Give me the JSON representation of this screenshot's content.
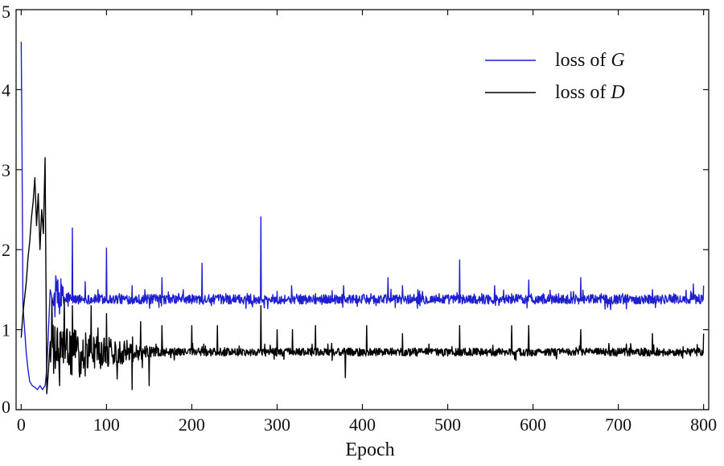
{
  "chart_data": {
    "type": "line",
    "title": "",
    "xlabel": "Epoch",
    "ylabel": "",
    "xlim": [
      -6,
      806
    ],
    "ylim": [
      0,
      5
    ],
    "xticks": [
      0,
      100,
      200,
      300,
      400,
      500,
      600,
      700,
      800
    ],
    "yticks": [
      0,
      1,
      2,
      3,
      4,
      5
    ],
    "grid": false,
    "legend_position": "top-right",
    "series": [
      {
        "name": "loss of G",
        "legend_prefix": "loss of ",
        "legend_var": "G",
        "color": "#1f1fd0",
        "baseline": 1.38,
        "start_points": [
          [
            0,
            4.6
          ],
          [
            1,
            3.2
          ],
          [
            2,
            1.3
          ],
          [
            4,
            1.0
          ],
          [
            6,
            0.7
          ],
          [
            8,
            0.5
          ],
          [
            10,
            0.35
          ],
          [
            13,
            0.3
          ],
          [
            16,
            0.28
          ],
          [
            19,
            0.25
          ],
          [
            22,
            0.3
          ],
          [
            25,
            0.25
          ],
          [
            28,
            0.3
          ],
          [
            30,
            0.5
          ],
          [
            32,
            1.0
          ],
          [
            34,
            1.5
          ],
          [
            36,
            1.4
          ],
          [
            38,
            1.3
          ]
        ],
        "transition_end": 60,
        "transition_start_amplitude": 0.3,
        "noise_amplitude": 0.06,
        "spikes": [
          [
            42,
            1.6
          ],
          [
            60,
            2.27
          ],
          [
            75,
            1.6
          ],
          [
            90,
            1.5
          ],
          [
            100,
            2.02
          ],
          [
            115,
            1.45
          ],
          [
            130,
            1.55
          ],
          [
            145,
            1.5
          ],
          [
            165,
            1.65
          ],
          [
            190,
            1.5
          ],
          [
            212,
            1.83
          ],
          [
            240,
            1.45
          ],
          [
            265,
            1.45
          ],
          [
            281,
            2.41
          ],
          [
            300,
            1.48
          ],
          [
            317,
            1.55
          ],
          [
            345,
            1.45
          ],
          [
            378,
            1.55
          ],
          [
            410,
            1.45
          ],
          [
            430,
            1.65
          ],
          [
            447,
            1.55
          ],
          [
            465,
            1.5
          ],
          [
            490,
            1.45
          ],
          [
            514,
            1.87
          ],
          [
            540,
            1.45
          ],
          [
            555,
            1.55
          ],
          [
            575,
            1.45
          ],
          [
            595,
            1.62
          ],
          [
            612,
            1.45
          ],
          [
            630,
            1.45
          ],
          [
            656,
            1.65
          ],
          [
            680,
            1.45
          ],
          [
            705,
            1.45
          ],
          [
            740,
            1.5
          ],
          [
            765,
            1.45
          ],
          [
            788,
            1.57
          ],
          [
            800,
            1.55
          ]
        ]
      },
      {
        "name": "loss of D",
        "legend_prefix": "loss of ",
        "legend_var": "D",
        "color": "#000000",
        "baseline": 0.72,
        "start_points": [
          [
            0,
            0.9
          ],
          [
            2,
            1.2
          ],
          [
            4,
            1.4
          ],
          [
            6,
            1.6
          ],
          [
            8,
            1.9
          ],
          [
            10,
            2.1
          ],
          [
            12,
            2.4
          ],
          [
            14,
            2.6
          ],
          [
            16,
            2.9
          ],
          [
            18,
            2.3
          ],
          [
            20,
            2.7
          ],
          [
            22,
            2.0
          ],
          [
            24,
            2.5
          ],
          [
            26,
            2.2
          ],
          [
            28,
            3.15
          ],
          [
            30,
            0.2
          ],
          [
            32,
            0.5
          ],
          [
            34,
            0.85
          ]
        ],
        "transition_end": 160,
        "transition_start_amplitude": 0.35,
        "noise_amplitude": 0.05,
        "spikes": [
          [
            36,
            1.4
          ],
          [
            45,
            0.3
          ],
          [
            60,
            1.3
          ],
          [
            70,
            0.45
          ],
          [
            82,
            1.3
          ],
          [
            100,
            1.2
          ],
          [
            130,
            0.25
          ],
          [
            140,
            1.1
          ],
          [
            150,
            0.3
          ],
          [
            165,
            1.05
          ],
          [
            200,
            1.05
          ],
          [
            230,
            1.05
          ],
          [
            281,
            1.3
          ],
          [
            300,
            1.0
          ],
          [
            318,
            1.0
          ],
          [
            345,
            1.05
          ],
          [
            380,
            0.4
          ],
          [
            405,
            1.05
          ],
          [
            447,
            0.95
          ],
          [
            514,
            1.05
          ],
          [
            575,
            1.05
          ],
          [
            595,
            1.05
          ],
          [
            656,
            1.0
          ],
          [
            740,
            0.95
          ],
          [
            800,
            0.95
          ]
        ]
      }
    ]
  }
}
